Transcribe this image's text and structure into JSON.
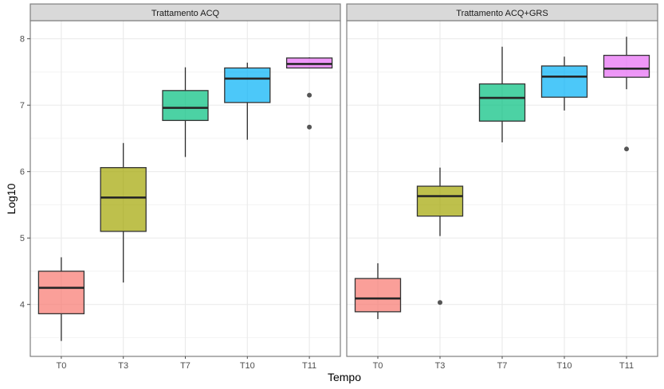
{
  "chart_data": {
    "type": "boxplot",
    "title": "",
    "xlabel": "Tempo",
    "ylabel": "Log10",
    "ylim": [
      3.25,
      8.25
    ],
    "yticks": [
      4,
      5,
      6,
      7,
      8
    ],
    "grid": true,
    "categories": [
      "T0",
      "T3",
      "T7",
      "T10",
      "T11"
    ],
    "colors": {
      "T0": "#F8766D",
      "T3": "#A3A500",
      "T7": "#00BF7D",
      "T10": "#00B0F6",
      "T11": "#E76BF3"
    },
    "panels": [
      {
        "name": "Trattamento ACQ",
        "boxes": [
          {
            "category": "T0",
            "whisker_low": 3.45,
            "q1": 3.86,
            "median": 4.25,
            "q3": 4.5,
            "whisker_high": 4.71,
            "outliers": []
          },
          {
            "category": "T3",
            "whisker_low": 4.33,
            "q1": 5.1,
            "median": 5.61,
            "q3": 6.06,
            "whisker_high": 6.43,
            "outliers": []
          },
          {
            "category": "T7",
            "whisker_low": 6.22,
            "q1": 6.77,
            "median": 6.96,
            "q3": 7.22,
            "whisker_high": 7.57,
            "outliers": []
          },
          {
            "category": "T10",
            "whisker_low": 6.48,
            "q1": 7.04,
            "median": 7.4,
            "q3": 7.56,
            "whisker_high": 7.64,
            "outliers": []
          },
          {
            "category": "T11",
            "whisker_low": 7.56,
            "q1": 7.56,
            "median": 7.62,
            "q3": 7.71,
            "whisker_high": 7.72,
            "outliers": [
              7.15,
              6.67
            ]
          }
        ]
      },
      {
        "name": "Trattamento ACQ+GRS",
        "boxes": [
          {
            "category": "T0",
            "whisker_low": 3.78,
            "q1": 3.89,
            "median": 4.09,
            "q3": 4.39,
            "whisker_high": 4.62,
            "outliers": []
          },
          {
            "category": "T3",
            "whisker_low": 5.03,
            "q1": 5.33,
            "median": 5.63,
            "q3": 5.78,
            "whisker_high": 6.06,
            "outliers": [
              4.03
            ]
          },
          {
            "category": "T7",
            "whisker_low": 6.44,
            "q1": 6.76,
            "median": 7.11,
            "q3": 7.32,
            "whisker_high": 7.88,
            "outliers": []
          },
          {
            "category": "T10",
            "whisker_low": 6.92,
            "q1": 7.12,
            "median": 7.43,
            "q3": 7.59,
            "whisker_high": 7.73,
            "outliers": []
          },
          {
            "category": "T11",
            "whisker_low": 7.24,
            "q1": 7.42,
            "median": 7.55,
            "q3": 7.75,
            "whisker_high": 8.03,
            "outliers": [
              6.34
            ]
          }
        ]
      }
    ]
  }
}
